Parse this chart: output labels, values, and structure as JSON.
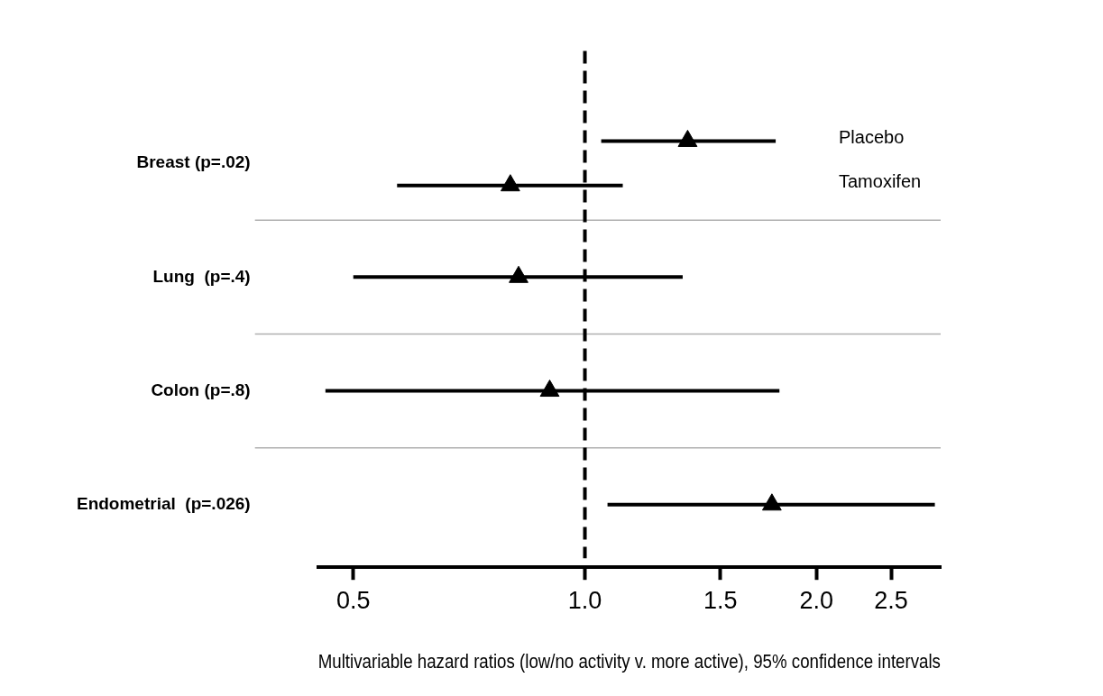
{
  "chart_data": {
    "type": "scatter",
    "orientation": "horizontal",
    "categories": [
      "Breast (p=.02)",
      "Lung  (p=.4)",
      "Colon (p=.8)",
      "Endometrial  (p=.026)"
    ],
    "xlabel": "Multivariable hazard ratios (low/no activity v. more active), 95% confidence intervals",
    "log": "x",
    "xlim": [
      0.45,
      2.9
    ],
    "xticks": [
      0.5,
      {
        "value": 1,
        "label": "1.0"
      },
      1.5,
      {
        "value": 2,
        "label": "2.0"
      },
      2.5
    ],
    "grid": "y",
    "marker": "triangle",
    "ref_lines": [
      {
        "axis": "x",
        "value": 1,
        "color": "#000000",
        "line_style": "dashed"
      }
    ],
    "series": [
      {
        "name": "Placebo",
        "color": "#000000",
        "values": [
          1.36,
          null,
          null,
          null
        ],
        "errors": [
          [
            1.05,
            1.77
          ],
          null,
          null,
          null
        ]
      },
      {
        "name": "Tamoxifen",
        "color": "#000000",
        "values": [
          0.8,
          null,
          null,
          null
        ],
        "errors": [
          [
            0.57,
            1.12
          ],
          null,
          null,
          null
        ]
      },
      {
        "color": "#000000",
        "values": [
          null,
          0.82,
          0.9,
          1.75
        ],
        "errors": [
          null,
          [
            0.5,
            1.34
          ],
          [
            0.46,
            1.79
          ],
          [
            1.07,
            2.85
          ]
        ]
      }
    ]
  }
}
